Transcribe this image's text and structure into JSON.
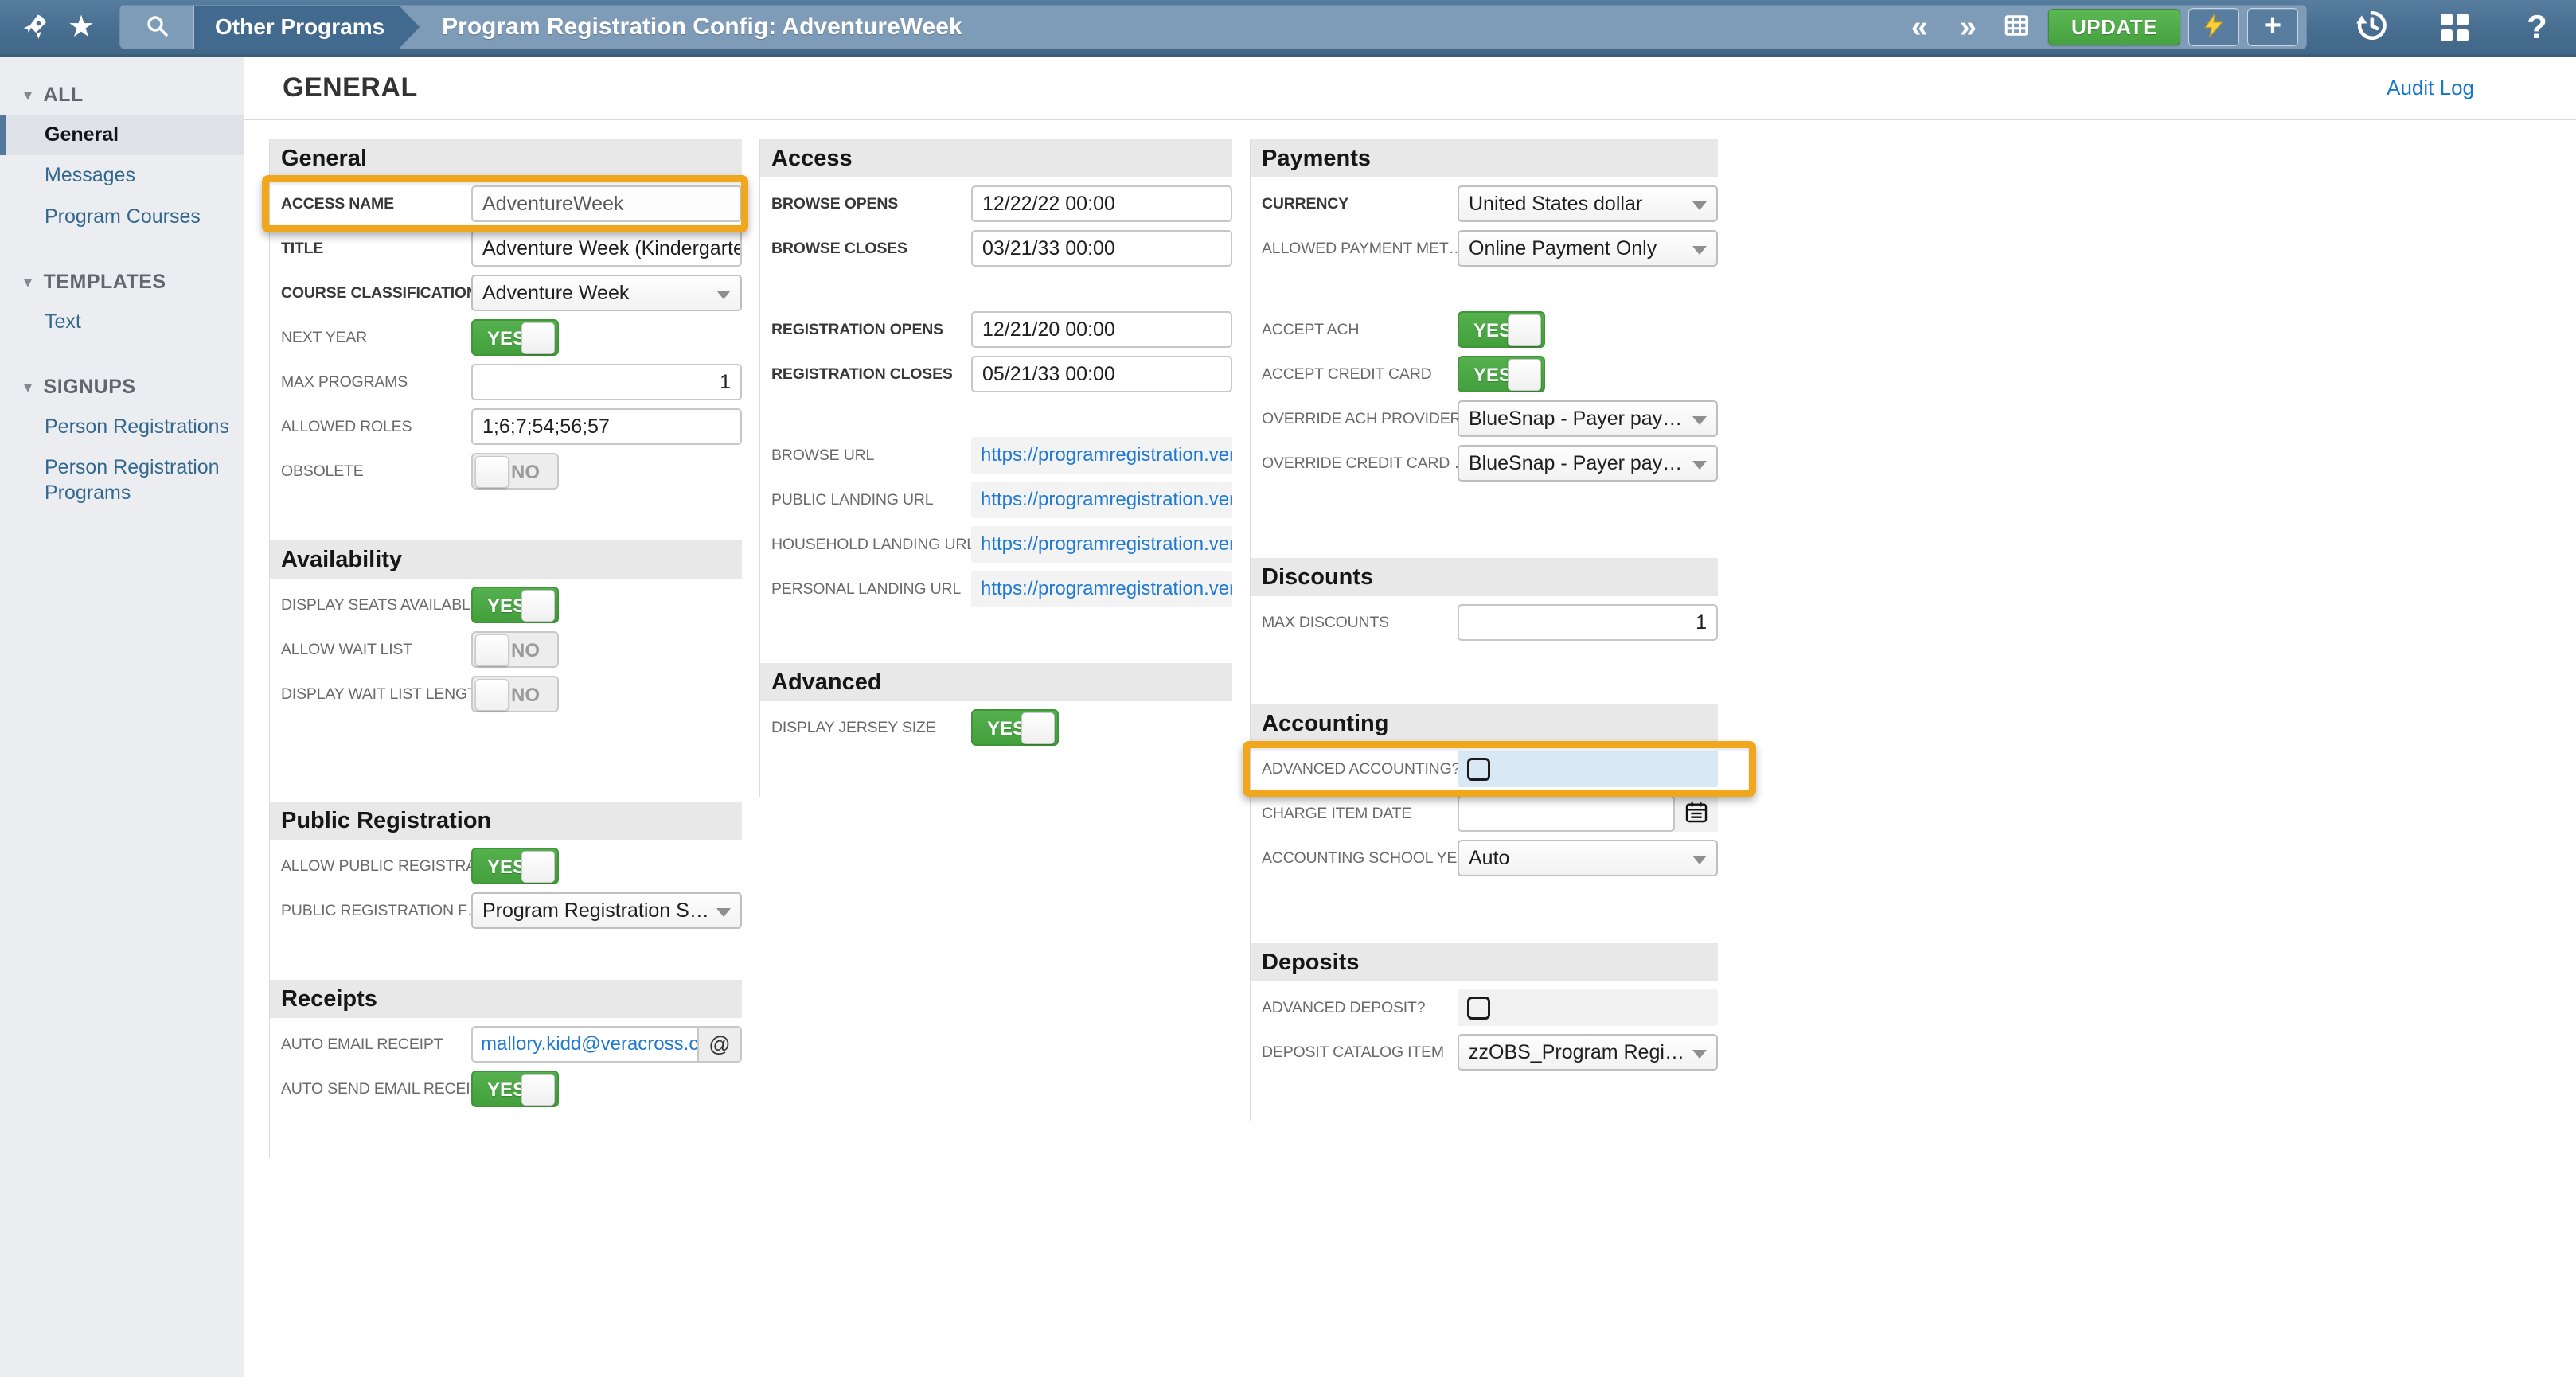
{
  "topbar": {
    "tab": "Other Programs",
    "title": "Program Registration Config: AdventureWeek",
    "update_label": "UPDATE",
    "prev_glyph": "«",
    "next_glyph": "»",
    "plus_glyph": "+",
    "help_glyph": "?",
    "star_glyph": "★",
    "icons": [
      "rocket-icon",
      "star-icon",
      "search-icon",
      "grid-view-icon",
      "lightning-icon",
      "plus-icon",
      "history-icon",
      "apps-icon",
      "help-icon"
    ]
  },
  "page": {
    "heading": "GENERAL",
    "audit_log": "Audit Log"
  },
  "sidebar": {
    "collapse_glyph": "▾",
    "groups": [
      {
        "label": "ALL",
        "items": [
          {
            "label": "General",
            "selected": true
          },
          {
            "label": "Messages",
            "selected": false
          },
          {
            "label": "Program Courses",
            "selected": false
          }
        ]
      },
      {
        "label": "TEMPLATES",
        "items": [
          {
            "label": "Text",
            "selected": false
          }
        ]
      },
      {
        "label": "SIGNUPS",
        "items": [
          {
            "label": "Person Registrations",
            "selected": false
          },
          {
            "label": "Person Registration Programs",
            "selected": false
          }
        ]
      }
    ]
  },
  "columns": [
    {
      "sections": [
        {
          "title": "General",
          "rows": [
            {
              "label": "ACCESS NAME",
              "bold": true,
              "type": "text",
              "value": "AdventureWeek",
              "muted": true,
              "highlight": "access"
            },
            {
              "label": "TITLE",
              "bold": true,
              "type": "text",
              "value": "Adventure Week (Kindergarten - G"
            },
            {
              "label": "COURSE CLASSIFICATION",
              "bold": true,
              "type": "select",
              "value": "Adventure Week"
            },
            {
              "label": "NEXT YEAR",
              "type": "toggle",
              "value": "YES"
            },
            {
              "label": "MAX PROGRAMS",
              "type": "text",
              "value": "1",
              "align": "right"
            },
            {
              "label": "ALLOWED ROLES",
              "type": "text",
              "value": "1;6;7;54;56;57"
            },
            {
              "label": "OBSOLETE",
              "type": "toggle",
              "value": "NO"
            }
          ]
        },
        {
          "title": "Availability",
          "rows": [
            {
              "label": "DISPLAY SEATS AVAILABLE",
              "type": "toggle",
              "value": "YES"
            },
            {
              "label": "ALLOW WAIT LIST",
              "type": "toggle",
              "value": "NO"
            },
            {
              "label": "DISPLAY WAIT LIST LENGTH",
              "type": "toggle",
              "value": "NO"
            }
          ]
        },
        {
          "title": "Public Registration",
          "rows": [
            {
              "label": "ALLOW PUBLIC REGISTRA…",
              "type": "toggle",
              "value": "YES"
            },
            {
              "label": "PUBLIC REGISTRATION F…",
              "type": "select",
              "value": "Program Registration Signup …"
            }
          ]
        },
        {
          "title": "Receipts",
          "rows": [
            {
              "label": "AUTO EMAIL RECEIPT",
              "type": "email",
              "value": "mallory.kidd@veracross.co",
              "button": "@"
            },
            {
              "label": "AUTO SEND EMAIL RECEI…",
              "type": "toggle",
              "value": "YES"
            }
          ]
        }
      ]
    },
    {
      "sections": [
        {
          "title": "Access",
          "rows": [
            {
              "label": "BROWSE OPENS",
              "bold": true,
              "type": "text",
              "value": "12/22/22 00:00"
            },
            {
              "label": "BROWSE CLOSES",
              "bold": true,
              "type": "text",
              "value": "03/21/33 00:00"
            },
            {
              "type": "spacer"
            },
            {
              "label": "REGISTRATION OPENS",
              "bold": true,
              "type": "text",
              "value": "12/21/20 00:00"
            },
            {
              "label": "REGISTRATION CLOSES",
              "bold": true,
              "type": "text",
              "value": "05/21/33 00:00"
            },
            {
              "type": "spacer"
            },
            {
              "label": "BROWSE URL",
              "type": "link",
              "value": "https://programregistration.verac"
            },
            {
              "label": "PUBLIC LANDING URL",
              "type": "link",
              "value": "https://programregistration.verac"
            },
            {
              "label": "HOUSEHOLD LANDING URL",
              "type": "link",
              "value": "https://programregistration.verac"
            },
            {
              "label": "PERSONAL LANDING URL",
              "type": "link",
              "value": "https://programregistration.verac"
            }
          ]
        },
        {
          "title": "Advanced",
          "rows": [
            {
              "label": "DISPLAY JERSEY SIZE",
              "type": "toggle",
              "value": "YES"
            }
          ]
        }
      ]
    },
    {
      "sections": [
        {
          "title": "Payments",
          "rows": [
            {
              "label": "CURRENCY",
              "bold": true,
              "type": "select",
              "value": "United States dollar"
            },
            {
              "label": "ALLOWED PAYMENT MET…",
              "type": "select",
              "value": "Online Payment Only"
            },
            {
              "type": "spacer"
            },
            {
              "label": "ACCEPT ACH",
              "type": "toggle",
              "value": "YES"
            },
            {
              "label": "ACCEPT CREDIT CARD",
              "type": "toggle",
              "value": "YES"
            },
            {
              "label": "OVERRIDE ACH PROVIDER",
              "type": "select",
              "value": "BlueSnap - Payer pays fee"
            },
            {
              "label": "OVERRIDE CREDIT CARD …",
              "type": "select",
              "value": "BlueSnap - Payer pays fee"
            }
          ]
        },
        {
          "title": "Discounts",
          "rows": [
            {
              "label": "MAX DISCOUNTS",
              "type": "text",
              "value": "1",
              "align": "right"
            }
          ]
        },
        {
          "title": "Accounting",
          "rows": [
            {
              "label": "ADVANCED ACCOUNTING?",
              "type": "checkbox",
              "checked": false,
              "strip": "blue",
              "highlight": "accounting"
            },
            {
              "label": "CHARGE ITEM DATE",
              "type": "datecal",
              "value": ""
            },
            {
              "label": "ACCOUNTING SCHOOL YE…",
              "type": "select",
              "value": "Auto"
            }
          ]
        },
        {
          "title": "Deposits",
          "rows": [
            {
              "label": "ADVANCED DEPOSIT?",
              "type": "checkbox",
              "checked": false,
              "strip": "gray"
            },
            {
              "label": "DEPOSIT CATALOG ITEM",
              "type": "select",
              "value": "zzOBS_Program Registration …"
            }
          ]
        }
      ]
    }
  ],
  "colors": {
    "topbar_blue": "#4a7093",
    "panel_blue": "#7e9cb8",
    "tab_blue": "#416a8e",
    "update_green": "#4ea44b",
    "toggle_green": "#4aa844",
    "highlight_orange": "#f0a71c",
    "link_blue": "#1f7ad4",
    "lightning_yellow": "#f8ce3a",
    "sidebar_selected_bar": "#53789b"
  }
}
